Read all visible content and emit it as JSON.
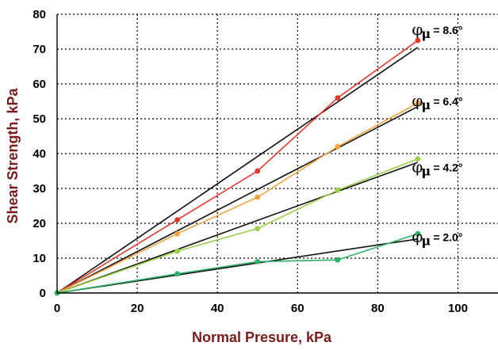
{
  "chart_data": {
    "type": "line",
    "title": "",
    "xlabel": "Normal Presure, kPa",
    "ylabel": "Shear Strength, kPa",
    "xlim": [
      0,
      110
    ],
    "ylim": [
      0,
      80
    ],
    "x_ticks": [
      0,
      20,
      40,
      60,
      80,
      100
    ],
    "y_ticks": [
      0,
      10,
      20,
      30,
      40,
      50,
      60,
      70,
      80
    ],
    "grid": true,
    "series": [
      {
        "name": "",
        "color": "#e8372a",
        "x": [
          0,
          30,
          50,
          70,
          90
        ],
        "y": [
          0,
          21,
          35,
          56,
          72.5
        ],
        "fit": [
          0,
          70.5
        ]
      },
      {
        "name": "",
        "color": "#f5a23c",
        "x": [
          0,
          30,
          50,
          70,
          90
        ],
        "y": [
          0,
          17,
          27.5,
          42,
          54.5
        ],
        "fit": [
          0,
          53.5
        ]
      },
      {
        "name": "",
        "color": "#9ad14b",
        "x": [
          0,
          30,
          50,
          70,
          90
        ],
        "y": [
          0,
          12,
          18.5,
          29.5,
          38.5
        ],
        "fit": [
          0,
          37.5
        ]
      },
      {
        "name": "",
        "color": "#2fb06a",
        "x": [
          0,
          30,
          50,
          70,
          90
        ],
        "y": [
          0,
          5.5,
          9,
          9.5,
          17
        ],
        "fit": [
          0,
          15.5
        ]
      }
    ],
    "annotations": [
      {
        "symbol": "φ",
        "subscript": "μ",
        "text": "= 8.6°",
        "y": 75.5
      },
      {
        "symbol": "φ",
        "subscript": "μ",
        "text": "= 6.4°",
        "y": 55
      },
      {
        "symbol": "φ",
        "subscript": "μ",
        "text": "= 4.2°",
        "y": 36
      },
      {
        "symbol": "φ",
        "subscript": "μ",
        "text": "= 2.0°",
        "y": 16
      }
    ]
  }
}
